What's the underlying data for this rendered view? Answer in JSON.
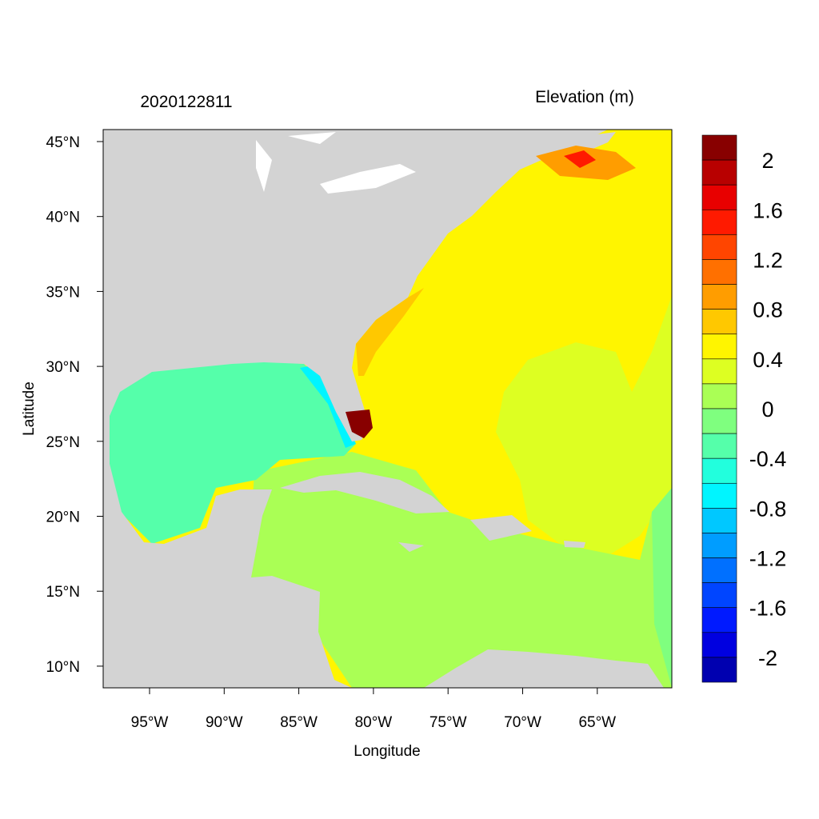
{
  "header": {
    "date_label": "2020122811",
    "variable_label": "Elevation (m)"
  },
  "axes": {
    "xlabel": "Longitude",
    "ylabel": "Latitude",
    "x_ticks": [
      "95°W",
      "90°W",
      "85°W",
      "80°W",
      "75°W",
      "70°W",
      "65°W"
    ],
    "y_ticks": [
      "45°N",
      "40°N",
      "35°N",
      "30°N",
      "25°N",
      "20°N",
      "15°N",
      "10°N"
    ]
  },
  "colorbar": {
    "labels": [
      "2",
      "1.6",
      "1.2",
      "0.8",
      "0.4",
      "0",
      "-0.4",
      "-0.8",
      "-1.2",
      "-1.6",
      "-2"
    ],
    "colors": [
      "#880000",
      "#b80000",
      "#e80000",
      "#ff1a00",
      "#ff4500",
      "#ff7000",
      "#ff9d00",
      "#ffc800",
      "#fff500",
      "#ddff22",
      "#aaff55",
      "#7fff7f",
      "#55ffaa",
      "#22ffdd",
      "#00f5ff",
      "#00c8ff",
      "#009dff",
      "#0070ff",
      "#0045ff",
      "#001aff",
      "#0000e0",
      "#0000b0"
    ]
  },
  "colors": {
    "land": "#d3d3d3",
    "lake": "#ffffff"
  }
}
